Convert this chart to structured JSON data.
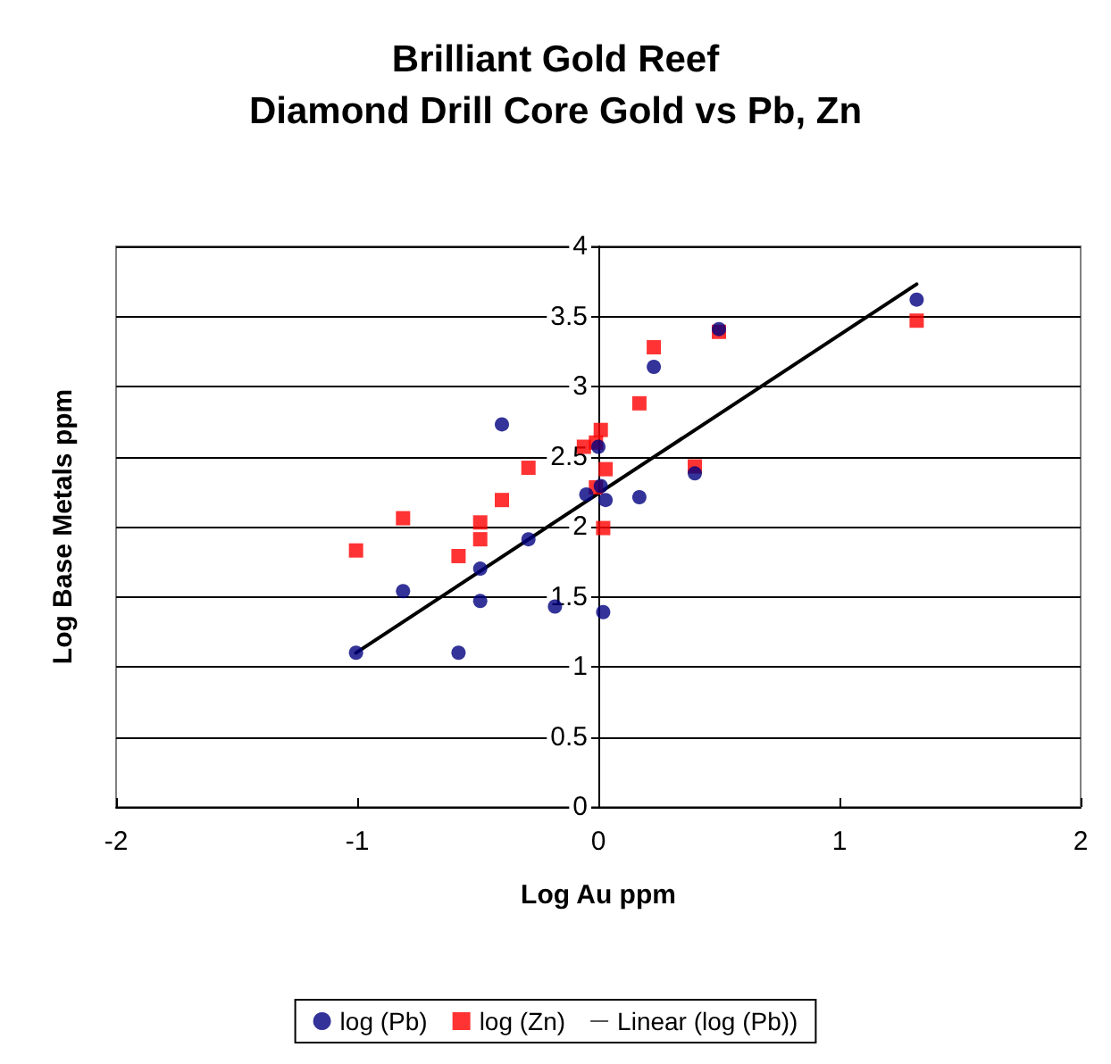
{
  "chart_data": {
    "type": "scatter",
    "title": "Brilliant Gold Reef",
    "subtitle": "Diamond Drill Core Gold vs Pb, Zn",
    "xlabel": "Log Au ppm",
    "ylabel": "Log Base Metals ppm",
    "xlim": [
      -2,
      2
    ],
    "xticks": [
      -2,
      -1,
      0,
      1,
      2
    ],
    "ylim": [
      0,
      4
    ],
    "yticks": [
      0,
      0.5,
      1,
      1.5,
      2,
      2.5,
      3,
      3.5,
      4
    ],
    "grid": "y",
    "legend": "bottom",
    "series": [
      {
        "name": "log (Pb)",
        "color": "#000080",
        "marker": "circle",
        "x": [
          -1.005,
          -0.81,
          -0.58,
          -0.49,
          -0.49,
          -0.4,
          -0.29,
          -0.18,
          -0.05,
          0.0,
          0.01,
          0.03,
          0.02,
          0.17,
          0.23,
          0.4,
          0.5,
          1.32
        ],
        "values": [
          1.1,
          1.54,
          1.1,
          1.7,
          1.47,
          2.73,
          1.91,
          1.43,
          2.23,
          2.57,
          2.29,
          2.19,
          1.39,
          2.21,
          3.14,
          2.38,
          3.41,
          3.62
        ]
      },
      {
        "name": "log (Zn)",
        "color": "#ff0000",
        "marker": "square",
        "x": [
          -1.005,
          -0.81,
          -0.58,
          -0.49,
          -0.49,
          -0.4,
          -0.29,
          -0.06,
          -0.01,
          0.01,
          0.03,
          -0.01,
          0.02,
          0.17,
          0.23,
          0.4,
          0.5,
          1.32
        ],
        "values": [
          1.83,
          2.06,
          1.79,
          2.03,
          1.91,
          2.19,
          2.42,
          2.57,
          2.6,
          2.69,
          2.41,
          2.28,
          1.99,
          2.88,
          3.28,
          2.43,
          3.39,
          3.47
        ]
      },
      {
        "name": "Linear (log (Pb))",
        "type": "line",
        "color": "#000000",
        "marker": "none",
        "line_style": "solid",
        "x": [
          -1.005,
          1.32
        ],
        "values": [
          1.1,
          3.73
        ]
      }
    ]
  }
}
